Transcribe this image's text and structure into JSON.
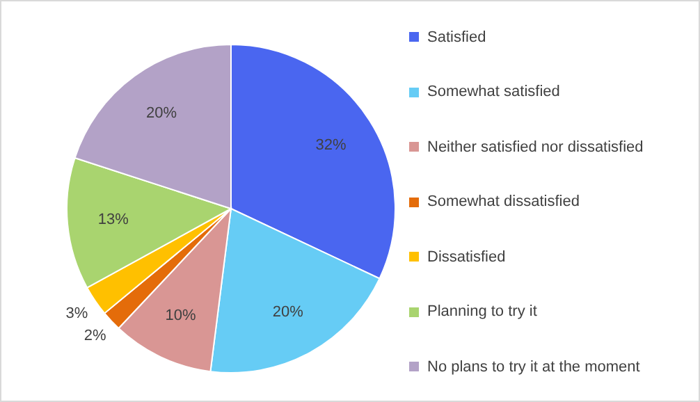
{
  "chart_data": {
    "type": "pie",
    "categories": [
      "Satisfied",
      "Somewhat satisfied",
      "Neither satisfied nor dissatisfied",
      "Somewhat dissatisfied",
      "Dissatisfied",
      "Planning to try it",
      "No plans to try it at the moment"
    ],
    "values": [
      32,
      20,
      10,
      2,
      3,
      13,
      20
    ],
    "value_labels": [
      "32%",
      "20%",
      "10%",
      "2%",
      "3%",
      "13%",
      "20%"
    ],
    "colors": [
      "#4a66f0",
      "#66ccf5",
      "#d99694",
      "#e46c0a",
      "#ffc000",
      "#a9d46f",
      "#b3a2c7"
    ],
    "legend": "right"
  }
}
